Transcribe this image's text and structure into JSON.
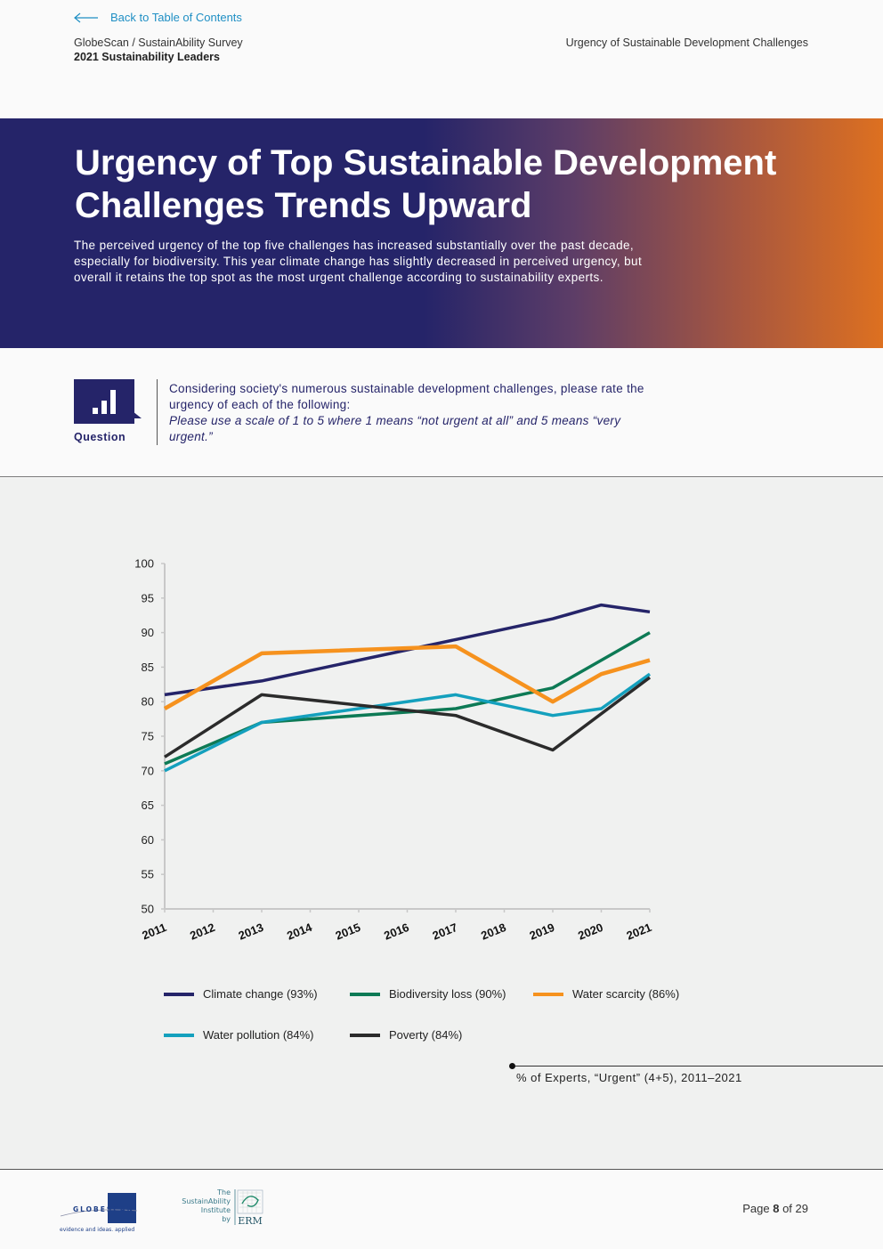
{
  "header": {
    "back_link": "Back to Table of Contents",
    "survey_name": "GlobeScan / SustainAbility Survey",
    "survey_sub": "2021 Sustainability Leaders",
    "section_name": "Urgency of Sustainable Development Challenges"
  },
  "hero": {
    "title": "Urgency of Top Sustainable Development Challenges Trends Upward",
    "text": "The perceived urgency of the top five challenges has increased substantially over the past decade, especially for biodiversity. This year climate change has slightly decreased in perceived urgency, but overall it retains the top spot as the most urgent challenge according to sustainability experts."
  },
  "question": {
    "label": "Question",
    "text": "Considering society's numerous sustainable development challenges, please rate the urgency of each of the following:",
    "italic": "Please use a scale of 1 to 5 where 1 means “not urgent at all” and 5 means “very urgent.”"
  },
  "chart_data": {
    "type": "line",
    "x": [
      "2011",
      "2012",
      "2013",
      "2014",
      "2015",
      "2016",
      "2017",
      "2018",
      "2019",
      "2020",
      "2021"
    ],
    "ylim": [
      50,
      100
    ],
    "yticks": [
      50,
      55,
      60,
      65,
      70,
      75,
      80,
      85,
      90,
      95,
      100
    ],
    "grid": false,
    "legend_position": "bottom",
    "caption": "% of Experts, “Urgent” (4+5), 2011–2021",
    "series": [
      {
        "name": "Climate change (93%)",
        "color": "#252469",
        "points": [
          [
            0,
            81
          ],
          [
            2,
            83
          ],
          [
            6,
            89
          ],
          [
            8,
            92
          ],
          [
            9,
            94
          ],
          [
            10,
            93
          ]
        ]
      },
      {
        "name": "Biodiversity loss (90%)",
        "color": "#0d7a55",
        "points": [
          [
            0,
            71
          ],
          [
            2,
            77
          ],
          [
            6,
            79
          ],
          [
            8,
            82
          ],
          [
            10,
            90
          ]
        ]
      },
      {
        "name": "Water scarcity (86%)",
        "color": "#f6921e",
        "points": [
          [
            0,
            79
          ],
          [
            2,
            87
          ],
          [
            6,
            88
          ],
          [
            8,
            80
          ],
          [
            9,
            84
          ],
          [
            10,
            86
          ]
        ]
      },
      {
        "name": "Water pollution (84%)",
        "color": "#14a0bd",
        "points": [
          [
            0,
            70
          ],
          [
            2,
            77
          ],
          [
            6,
            81
          ],
          [
            8,
            78
          ],
          [
            9,
            79
          ],
          [
            10,
            84
          ]
        ]
      },
      {
        "name": "Poverty (84%)",
        "color": "#2b2b2b",
        "points": [
          [
            0,
            72
          ],
          [
            2,
            81
          ],
          [
            6,
            78
          ],
          [
            8,
            73
          ],
          [
            10,
            83.5
          ]
        ]
      }
    ]
  },
  "footer": {
    "page_prefix": "Page",
    "page_current": "8",
    "page_of": "of 29",
    "logo_globescan": "GLOBESCAN",
    "logo_globescan_tagline": "evidence and ideas. applied",
    "logo_si_line1": "The",
    "logo_si_line2": "SustainAbility",
    "logo_si_line3": "Institute",
    "logo_si_line4": "by",
    "logo_si_erm": "ERM"
  }
}
